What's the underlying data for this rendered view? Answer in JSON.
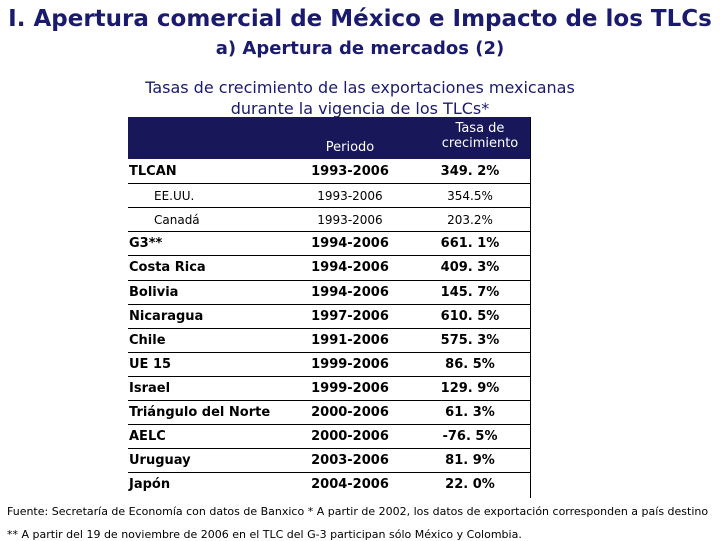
{
  "header": {
    "title": "I. Apertura comercial de México e Impacto de los TLCs",
    "subtitle": "a) Apertura de mercados (2)"
  },
  "table_caption": {
    "line1": "Tasas de crecimiento de las exportaciones mexicanas",
    "line2": "durante la vigencia de los TLCs*"
  },
  "columns": {
    "periodo": "Periodo",
    "tasa_line1": "Tasa de",
    "tasa_line2": "crecimiento"
  },
  "rows": [
    {
      "name": "TLCAN",
      "periodo": "1993-2006",
      "tasa": "349. 2%",
      "sub": false
    },
    {
      "name": "EE.UU.",
      "periodo": "1993-2006",
      "tasa": "354.5%",
      "sub": true
    },
    {
      "name": "Canadá",
      "periodo": "1993-2006",
      "tasa": "203.2%",
      "sub": true
    },
    {
      "name": "G3**",
      "periodo": "1994-2006",
      "tasa": "661. 1%",
      "sub": false
    },
    {
      "name": "Costa Rica",
      "periodo": "1994-2006",
      "tasa": "409. 3%",
      "sub": false
    },
    {
      "name": "Bolivia",
      "periodo": "1994-2006",
      "tasa": "145. 7%",
      "sub": false
    },
    {
      "name": "Nicaragua",
      "periodo": "1997-2006",
      "tasa": "610. 5%",
      "sub": false
    },
    {
      "name": "Chile",
      "periodo": "1991-2006",
      "tasa": "575. 3%",
      "sub": false
    },
    {
      "name": "UE 15",
      "periodo": "1999-2006",
      "tasa": "86. 5%",
      "sub": false
    },
    {
      "name": "Israel",
      "periodo": "1999-2006",
      "tasa": "129. 9%",
      "sub": false
    },
    {
      "name": "Triángulo del Norte",
      "periodo": "2000-2006",
      "tasa": "61. 3%",
      "sub": false
    },
    {
      "name": "AELC",
      "periodo": "2000-2006",
      "tasa": "-76. 5%",
      "sub": false
    },
    {
      "name": "Uruguay",
      "periodo": "2003-2006",
      "tasa": "81. 9%",
      "sub": false
    },
    {
      "name": "Japón",
      "periodo": "2004-2006",
      "tasa": "22. 0%",
      "sub": false
    }
  ],
  "footer": {
    "source": "Fuente: Secretaría de Economía con datos de Banxico * A partir de 2002, los datos de exportación corresponden a país destino",
    "note": "** A partir del 19 de noviembre de 2006 en el TLC del G-3 participan sólo México y Colombia."
  }
}
